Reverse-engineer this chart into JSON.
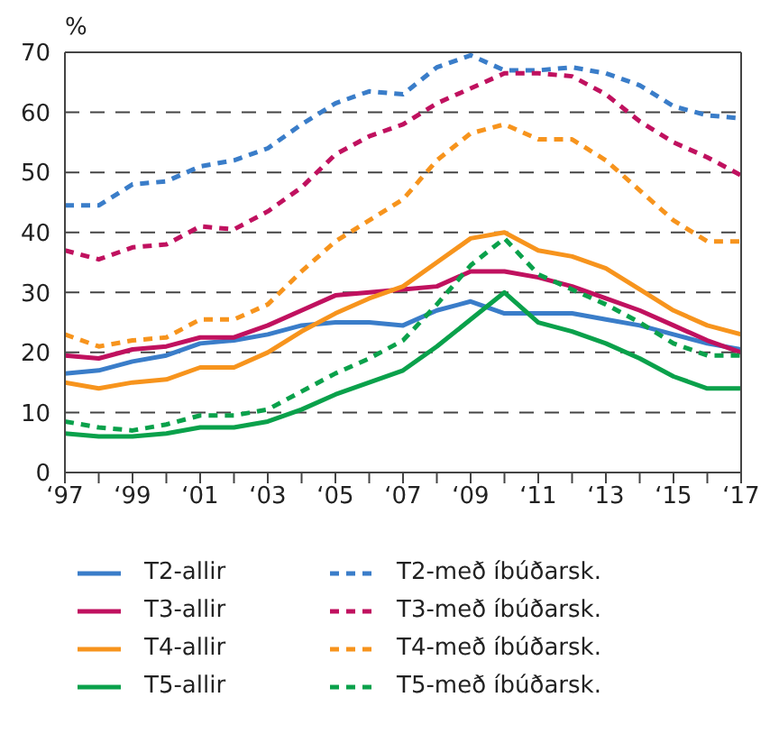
{
  "chart_data": {
    "type": "line",
    "ylabel": "%",
    "categories": [
      "‘97",
      null,
      "‘99",
      null,
      "‘01",
      null,
      "‘03",
      null,
      "‘05",
      null,
      "‘07",
      null,
      "‘09",
      null,
      "‘11",
      null,
      "‘13",
      null,
      "‘15",
      null,
      "‘17"
    ],
    "ylim": [
      0,
      70
    ],
    "yticks": [
      0,
      10,
      20,
      30,
      40,
      50,
      60,
      70
    ],
    "grid": "y",
    "legend": "bottom",
    "marker": "none",
    "series": [
      {
        "name": "T2-allir",
        "color": "#3a7dc9",
        "line_style": "solid",
        "values": [
          16.5,
          17,
          18.5,
          19.5,
          21.5,
          22,
          23,
          24.5,
          25,
          25,
          24.5,
          27,
          28.5,
          26.5,
          26.5,
          26.5,
          25.5,
          24.5,
          23,
          21.5,
          20.5
        ]
      },
      {
        "name": "T2-með íbúðarsk.",
        "color": "#3a7dc9",
        "line_style": "dashed",
        "values": [
          44.5,
          44.5,
          48,
          48.5,
          51,
          52,
          54,
          58,
          61.5,
          63.5,
          63,
          67.5,
          69.5,
          67,
          67,
          67.5,
          66.5,
          64.5,
          61,
          59.5,
          59
        ]
      },
      {
        "name": "T3-allir",
        "color": "#c0115f",
        "line_style": "solid",
        "values": [
          19.5,
          19,
          20.5,
          21,
          22.5,
          22.5,
          24.5,
          27,
          29.5,
          30,
          30.5,
          31,
          33.5,
          33.5,
          32.5,
          31,
          29,
          27,
          24.5,
          22,
          20
        ]
      },
      {
        "name": "T3-með íbúðarsk.",
        "color": "#c0115f",
        "line_style": "dashed",
        "values": [
          37,
          35.5,
          37.5,
          38,
          41,
          40.5,
          43.5,
          47.5,
          53,
          56,
          58,
          61.5,
          64,
          66.5,
          66.5,
          66,
          63,
          58.5,
          55,
          52.5,
          49.5
        ]
      },
      {
        "name": "T4-allir",
        "color": "#f7941d",
        "line_style": "solid",
        "values": [
          15,
          14,
          15,
          15.5,
          17.5,
          17.5,
          20,
          23.5,
          26.5,
          29,
          31,
          35,
          39,
          40,
          37,
          36,
          34,
          30.5,
          27,
          24.5,
          23
        ]
      },
      {
        "name": "T4-með íbúðarsk.",
        "color": "#f7941d",
        "line_style": "dashed",
        "values": [
          23,
          21,
          22,
          22.5,
          25.5,
          25.5,
          28,
          33.5,
          38.5,
          42,
          45.5,
          52,
          56.5,
          58,
          55.5,
          55.5,
          52,
          47,
          42,
          38.5,
          38.5
        ]
      },
      {
        "name": "T5-allir",
        "color": "#0aa14b",
        "line_style": "solid",
        "values": [
          6.5,
          6,
          6,
          6.5,
          7.5,
          7.5,
          8.5,
          10.5,
          13,
          15,
          17,
          21,
          25.5,
          30,
          25,
          23.5,
          21.5,
          19,
          16,
          14,
          14
        ]
      },
      {
        "name": "T5-með íbúðarsk.",
        "color": "#0aa14b",
        "line_style": "dashed",
        "values": [
          8.5,
          7.5,
          7,
          8,
          9.5,
          9.5,
          10.5,
          13.5,
          16.5,
          19,
          22,
          28,
          34.5,
          39,
          33,
          30.5,
          28,
          25,
          21.5,
          19.5,
          19.5
        ]
      }
    ]
  }
}
